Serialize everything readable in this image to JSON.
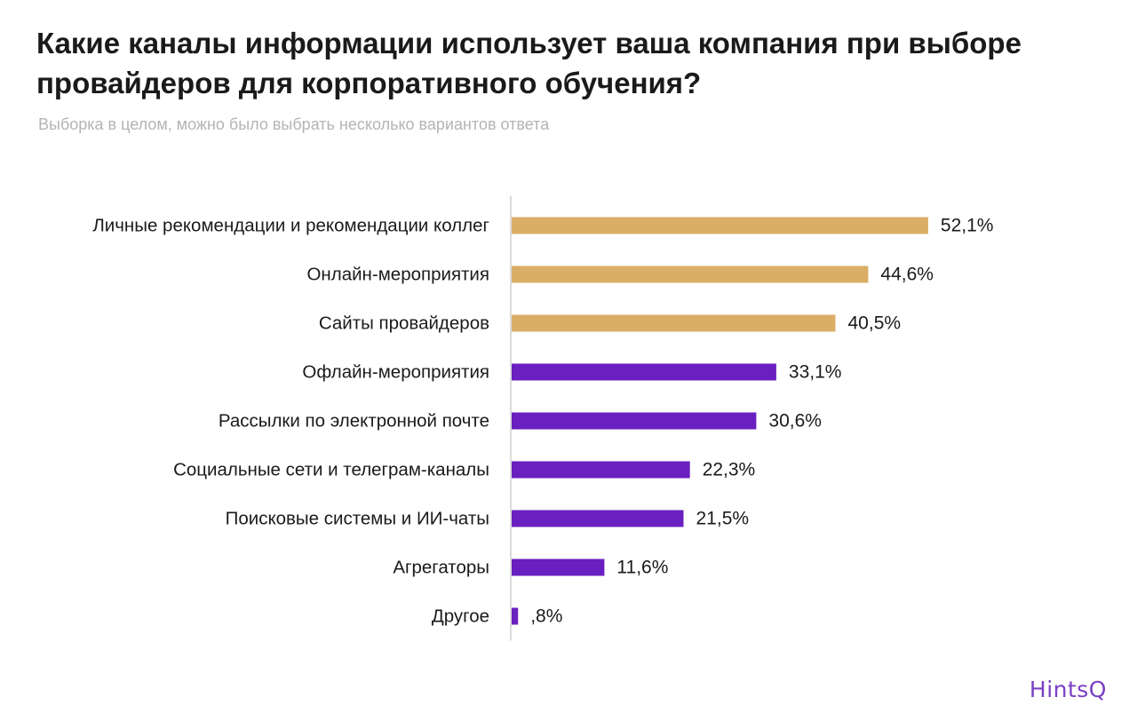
{
  "title": "Какие каналы информации использует ваша компания при выборе провайдеров для корпоративного обучения?",
  "subtitle": "Выборка в целом, можно было выбрать несколько вариантов ответа",
  "brand": "HintsQ",
  "colors": {
    "highlight": "#dbae68",
    "default": "#6a1fc0",
    "axis": "#cfcfcf",
    "text": "#1a1a1a"
  },
  "chart_data": {
    "type": "bar",
    "orientation": "horizontal",
    "categories": [
      "Личные рекомендации и рекомендации коллег",
      "Онлайн-мероприятия",
      "Сайты провайдеров",
      "Офлайн-мероприятия",
      "Рассылки по электронной почте",
      "Социальные сети и телеграм-каналы",
      "Поисковые системы и ИИ-чаты",
      "Агрегаторы",
      "Другое"
    ],
    "values": [
      52.1,
      44.6,
      40.5,
      33.1,
      30.6,
      22.3,
      21.5,
      11.6,
      0.8
    ],
    "value_labels": [
      "52,1%",
      "44,6%",
      "40,5%",
      "33,1%",
      "30,6%",
      "22,3%",
      "21,5%",
      "11,6%",
      ",8%"
    ],
    "highlighted_top": 3,
    "xlim": [
      0,
      100
    ],
    "grid": false,
    "legend": "none"
  }
}
